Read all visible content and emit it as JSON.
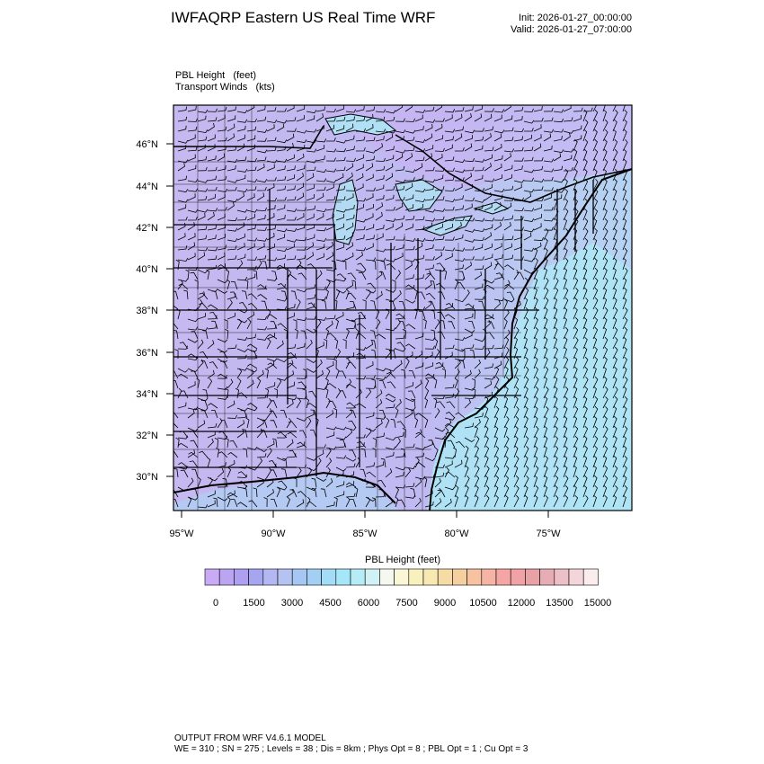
{
  "header": {
    "title": "IWFAQRP Eastern US Real Time WRF",
    "init": "Init: 2026-01-27_00:00:00",
    "valid": "Valid: 2026-01-27_07:00:00"
  },
  "field_labels": {
    "line1": "PBL Height   (feet)",
    "line2": "Transport Winds   (kts)"
  },
  "map": {
    "lat_labels": [
      "46°N",
      "44°N",
      "42°N",
      "40°N",
      "38°N",
      "36°N",
      "34°N",
      "32°N",
      "30°N"
    ],
    "lon_labels": [
      "95°W",
      "90°W",
      "85°W",
      "80°W",
      "75°W"
    ],
    "field_colors": {
      "low": "#c3b4f0",
      "mid": "#b7c8f2",
      "ocean": "#aee6f5",
      "lake": "#b8ddf2"
    },
    "barb_color": "#000000"
  },
  "colorbar": {
    "title": "PBL Height  (feet)",
    "tick_labels": [
      "0",
      "1500",
      "3000",
      "4500",
      "6000",
      "7500",
      "9000",
      "10500",
      "12000",
      "13500",
      "15000"
    ],
    "colors": [
      "#c9aaf5",
      "#bba4f2",
      "#ae9ff0",
      "#a6a6f0",
      "#b3b8f2",
      "#b5c3f3",
      "#a6c6f3",
      "#a3cff5",
      "#a2dcf7",
      "#a5e6f8",
      "#b5ecf6",
      "#d0f2f5",
      "#f4f8f0",
      "#fbf7d6",
      "#f8f1be",
      "#f7e9b1",
      "#f6dca4",
      "#f6cfa0",
      "#f6c2a0",
      "#f6b4a4",
      "#f5a6a4",
      "#f0a2a4",
      "#e8a2a6",
      "#e6aeb4",
      "#ecc0c6",
      "#f4d6da",
      "#fbecee"
    ]
  },
  "footer": {
    "line1": "OUTPUT FROM WRF V4.6.1 MODEL",
    "line2": "WE = 310 ; SN = 275 ; Levels = 38 ; Dis = 8km ; Phys Opt = 8 ; PBL Opt = 1 ; Cu Opt = 3"
  }
}
